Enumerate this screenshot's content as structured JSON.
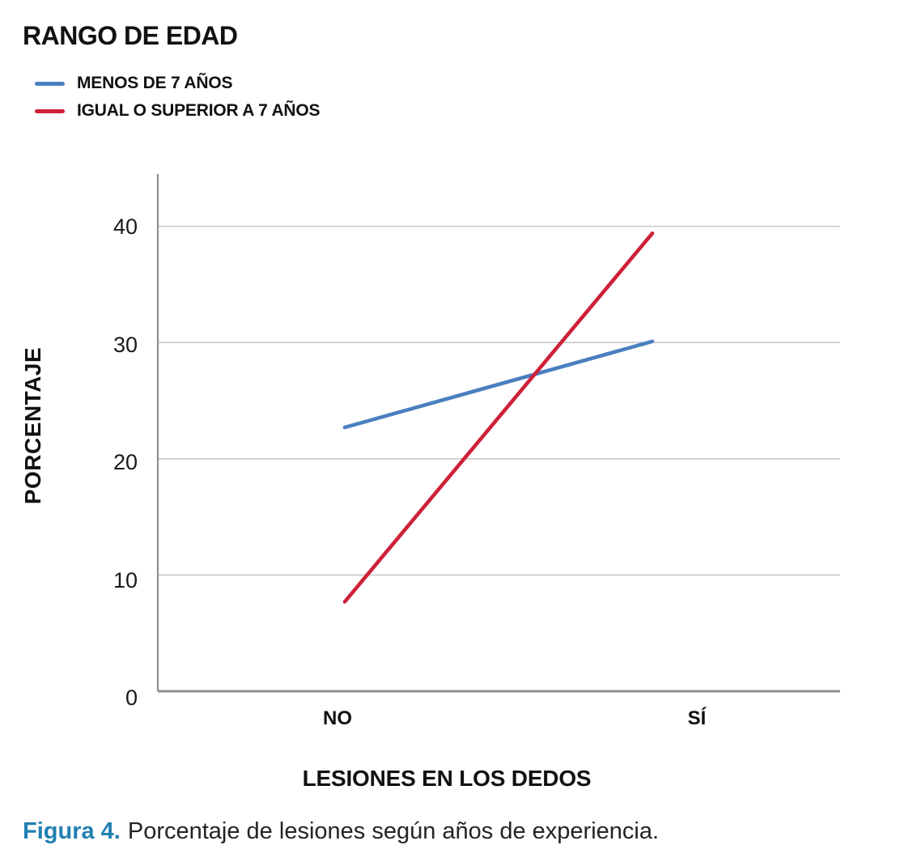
{
  "legend": {
    "title": "RANGO DE EDAD",
    "items": [
      {
        "label": "MENOS DE 7 AÑOS",
        "color": "#4A7FC0"
      },
      {
        "label": "IGUAL O SUPERIOR A 7 AÑOS",
        "color": "#CE2139"
      }
    ]
  },
  "chart_data": {
    "type": "line",
    "categories": [
      "NO",
      "SÍ"
    ],
    "series": [
      {
        "name": "MENOS DE 7 AÑOS",
        "color": "#4A7FC0",
        "values": [
          22.7,
          30.1
        ]
      },
      {
        "name": "IGUAL O SUPERIOR A 7 AÑOS",
        "color": "#CE2139",
        "values": [
          7.7,
          39.4
        ]
      }
    ],
    "title": "",
    "xlabel": "LESIONES EN LOS DEDOS",
    "ylabel": "PORCENTAJE",
    "yticks": [
      0,
      10,
      20,
      30,
      40
    ],
    "ylim": [
      0,
      44.5
    ],
    "legend_title": "RANGO DE EDAD",
    "legend_position": "top-left",
    "grid": "horizontal",
    "gridline_color": "#C8C8C8",
    "axis_color": "#8F8F8F"
  },
  "caption": {
    "label": "Figura 4.",
    "text": "Porcentaje de lesiones según años de experiencia.",
    "label_color": "#2280B2"
  }
}
